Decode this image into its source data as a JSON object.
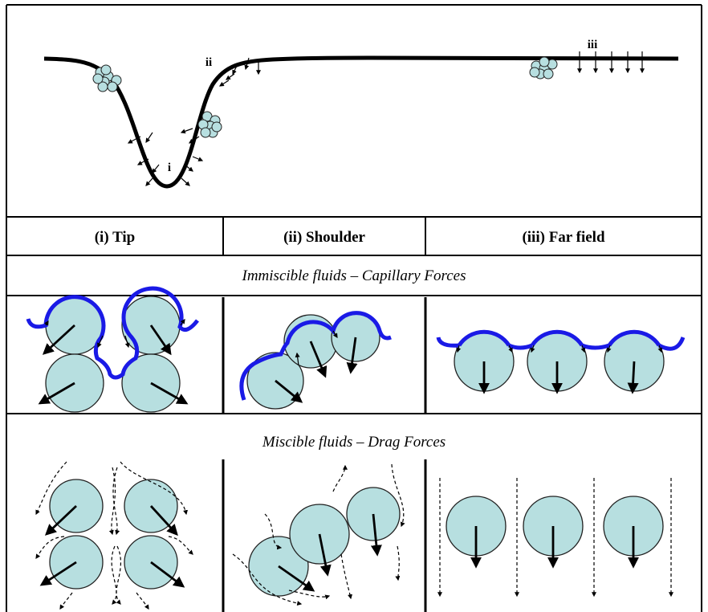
{
  "figure": {
    "markers": [
      "i",
      "ii",
      "iii"
    ],
    "columns": [
      "(i) Tip",
      "(ii) Shoulder",
      "(iii) Far field"
    ],
    "rows": [
      "Immiscible fluids – Capillary Forces",
      "Miscible fluids – Drag Forces"
    ]
  }
}
